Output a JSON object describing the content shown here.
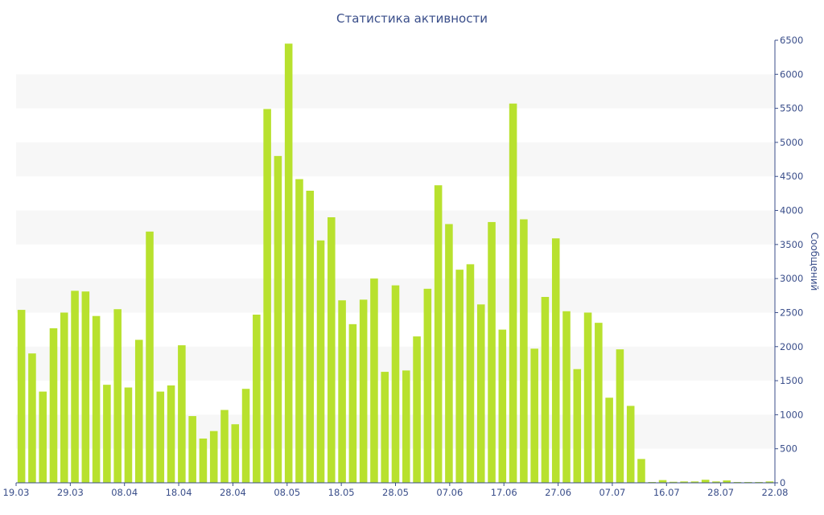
{
  "chart_data": {
    "type": "bar",
    "title": "Статистика активности",
    "xlabel": "",
    "ylabel": "Сообщений",
    "ylim": [
      0,
      6500
    ],
    "yticks": [
      0,
      500,
      1000,
      1500,
      2000,
      2500,
      3000,
      3500,
      4000,
      4500,
      5000,
      5500,
      6000,
      6500
    ],
    "y_axis_position": "right",
    "grid": "horizontal-bands",
    "bar_color": "#b8e12e",
    "axis_color": "#3a4e8a",
    "x_tick_labels": [
      "19.03",
      "29.03",
      "08.04",
      "18.04",
      "28.04",
      "08.05",
      "18.05",
      "28.05",
      "07.06",
      "17.06",
      "27.06",
      "07.07",
      "16.07",
      "28.07",
      "22.08"
    ],
    "values": [
      2540,
      1900,
      1340,
      2270,
      2500,
      2820,
      2810,
      2450,
      1440,
      2550,
      1400,
      2100,
      3690,
      1340,
      1430,
      2020,
      980,
      650,
      760,
      1070,
      860,
      1380,
      2470,
      5490,
      4800,
      6450,
      4460,
      4290,
      3560,
      3900,
      2680,
      2330,
      2690,
      3000,
      1630,
      2900,
      1650,
      2150,
      2850,
      4370,
      3800,
      3130,
      3210,
      2620,
      3830,
      2250,
      5570,
      3870,
      1970,
      2730,
      3590,
      2520,
      1670,
      2500,
      2350,
      1250,
      1960,
      1130,
      350,
      10,
      40,
      15,
      20,
      20,
      45,
      20,
      35,
      10,
      10,
      10,
      20
    ]
  }
}
